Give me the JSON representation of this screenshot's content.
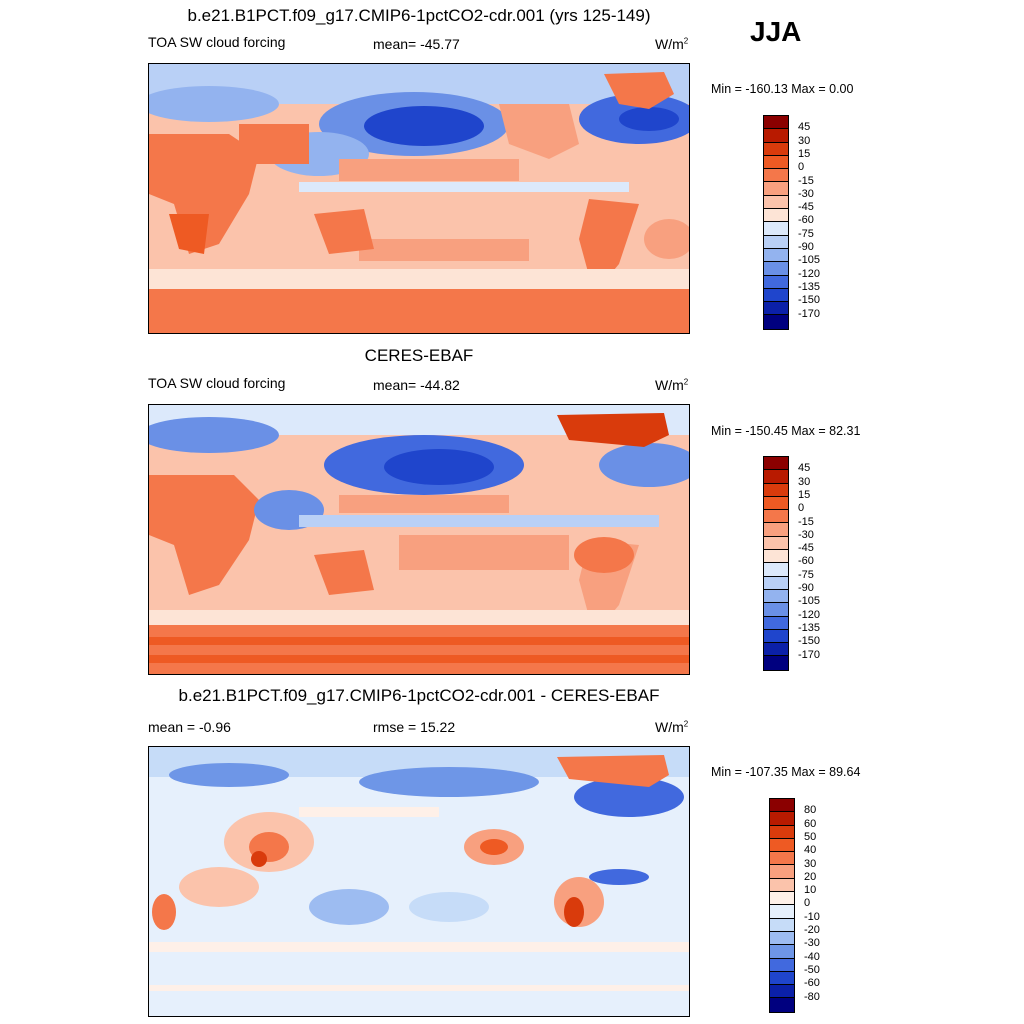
{
  "season": "JJA",
  "panels": [
    {
      "title": "b.e21.B1PCT.f09_g17.CMIP6-1pctCO2-cdr.001 (yrs 125-149)",
      "left_label": "TOA SW cloud forcing",
      "center_label": "mean= -45.77",
      "units": "W/m",
      "units_sup": "2",
      "minmax": "Min = -160.13 Max =    0.00",
      "colorbar": {
        "labels": [
          "45",
          "30",
          "15",
          "0",
          "-15",
          "-30",
          "-45",
          "-60",
          "-75",
          "-90",
          "-105",
          "-120",
          "-135",
          "-150",
          "-170"
        ],
        "colors": [
          "#8b0000",
          "#b81a00",
          "#d93b0c",
          "#ee5a23",
          "#f4774a",
          "#f8a07f",
          "#fbc3ab",
          "#fde4d6",
          "#dce9fb",
          "#b9d0f6",
          "#93b3ef",
          "#6a90e6",
          "#4169de",
          "#1f45cc",
          "#0b20a8",
          "#00007f"
        ]
      }
    },
    {
      "title": "CERES-EBAF",
      "left_label": "TOA SW cloud forcing",
      "center_label": "mean= -44.82",
      "units": "W/m",
      "units_sup": "2",
      "minmax": "Min = -150.45 Max =  82.31",
      "colorbar": {
        "labels": [
          "45",
          "30",
          "15",
          "0",
          "-15",
          "-30",
          "-45",
          "-60",
          "-75",
          "-90",
          "-105",
          "-120",
          "-135",
          "-150",
          "-170"
        ],
        "colors": [
          "#8b0000",
          "#b81a00",
          "#d93b0c",
          "#ee5a23",
          "#f4774a",
          "#f8a07f",
          "#fbc3ab",
          "#fde4d6",
          "#dce9fb",
          "#b9d0f6",
          "#93b3ef",
          "#6a90e6",
          "#4169de",
          "#1f45cc",
          "#0b20a8",
          "#00007f"
        ]
      }
    },
    {
      "title": "b.e21.B1PCT.f09_g17.CMIP6-1pctCO2-cdr.001 - CERES-EBAF",
      "left_label": "mean =  -0.96",
      "center_label": "rmse =  15.22",
      "units": "W/m",
      "units_sup": "2",
      "minmax": "Min = -107.35 Max =  89.64",
      "colorbar": {
        "labels": [
          "80",
          "60",
          "50",
          "40",
          "30",
          "20",
          "10",
          "0",
          "-10",
          "-20",
          "-30",
          "-40",
          "-50",
          "-60",
          "-80"
        ],
        "colors": [
          "#8b0000",
          "#b81a00",
          "#d93b0c",
          "#ee5a23",
          "#f4774a",
          "#f8a07f",
          "#fbc3ab",
          "#fef0e8",
          "#e6f0fc",
          "#c6dcf8",
          "#9dbcf1",
          "#6e96e7",
          "#4169de",
          "#1f45cc",
          "#0b20a8",
          "#00007f"
        ]
      }
    }
  ]
}
